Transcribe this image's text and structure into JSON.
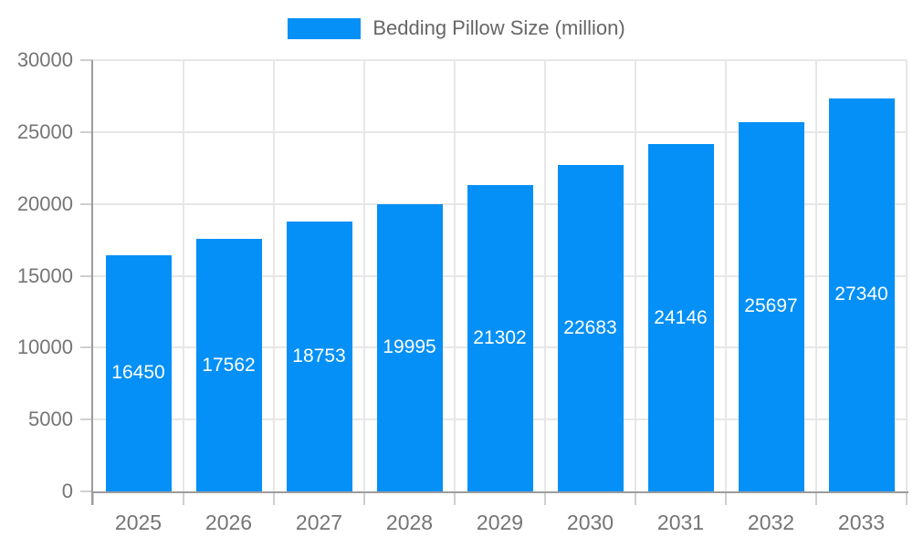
{
  "legend": {
    "label": "Bedding Pillow Size (million)"
  },
  "chart_data": {
    "type": "bar",
    "title": "Bedding Pillow Size (million)",
    "categories": [
      "2025",
      "2026",
      "2027",
      "2028",
      "2029",
      "2030",
      "2031",
      "2032",
      "2033"
    ],
    "values": [
      16450,
      17562,
      18753,
      19995,
      21302,
      22683,
      24146,
      25697,
      27340
    ],
    "xlabel": "",
    "ylabel": "",
    "ylim": [
      0,
      30000
    ],
    "ytick_step": 5000,
    "yticks": [
      "0",
      "5000",
      "10000",
      "15000",
      "20000",
      "25000",
      "30000"
    ],
    "grid": true,
    "legend_position": "top-center",
    "value_labels": "inside-center-white"
  },
  "colors": {
    "bar": "#0490F6",
    "grid": "#e7e7e7",
    "axis": "#9c9c9c",
    "tick": "#cfcfcf",
    "axis_label": "#757575",
    "legend_text": "#666666",
    "value_label": "#ffffff"
  }
}
